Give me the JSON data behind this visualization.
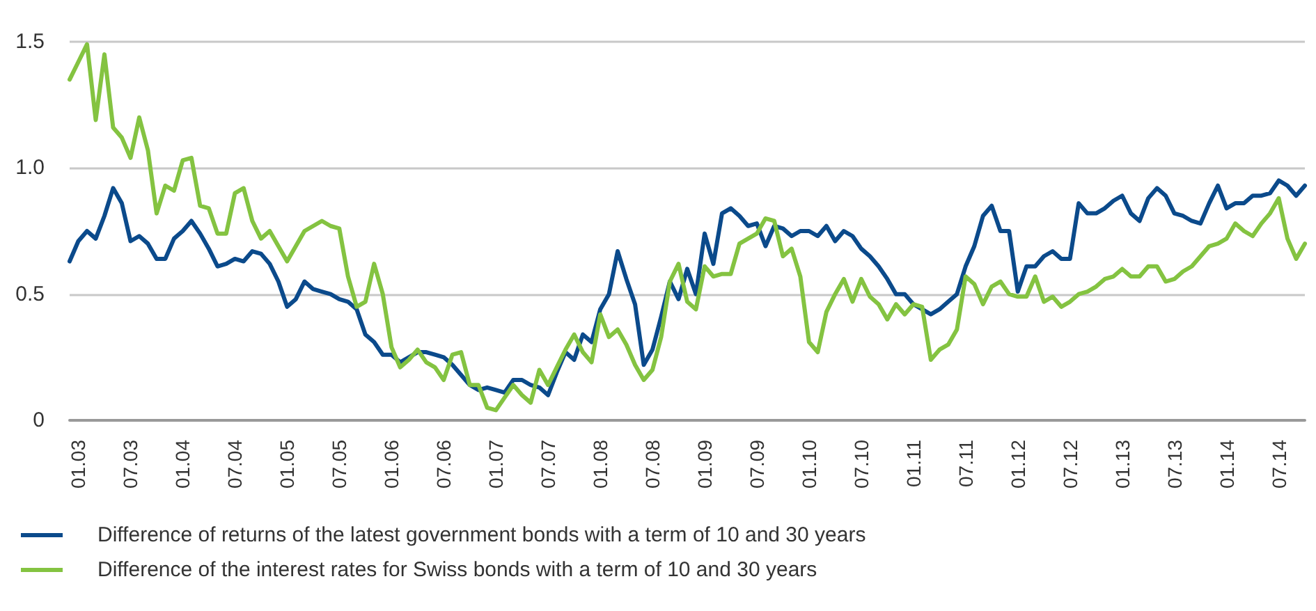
{
  "chart_data": {
    "type": "line",
    "categories": [
      null,
      "01.03",
      null,
      null,
      null,
      null,
      null,
      "07.03",
      null,
      null,
      null,
      null,
      null,
      "01.04",
      null,
      null,
      null,
      null,
      null,
      "07.04",
      null,
      null,
      null,
      null,
      null,
      "01.05",
      null,
      null,
      null,
      null,
      null,
      "07.05",
      null,
      null,
      null,
      null,
      null,
      "01.06",
      null,
      null,
      null,
      null,
      null,
      "07.06",
      null,
      null,
      null,
      null,
      null,
      "01.07",
      null,
      null,
      null,
      null,
      null,
      "07.07",
      null,
      null,
      null,
      null,
      null,
      "01.08",
      null,
      null,
      null,
      null,
      null,
      "07.08",
      null,
      null,
      null,
      null,
      null,
      "01.09",
      null,
      null,
      null,
      null,
      null,
      "07.09",
      null,
      null,
      null,
      null,
      null,
      "01.10",
      null,
      null,
      null,
      null,
      null,
      "07.10",
      null,
      null,
      null,
      null,
      null,
      "01.11",
      null,
      null,
      null,
      null,
      null,
      "07.11",
      null,
      null,
      null,
      null,
      null,
      "01.12",
      null,
      null,
      null,
      null,
      null,
      "07.12",
      null,
      null,
      null,
      null,
      null,
      "01.13",
      null,
      null,
      null,
      null,
      null,
      "07.13",
      null,
      null,
      null,
      null,
      null,
      "01.14",
      null,
      null,
      null,
      null,
      null,
      "07.14",
      null,
      null,
      null
    ],
    "series": [
      {
        "name": "Difference of returns of the latest government bonds with a term of 10 and 30 years",
        "color": "#0b4a8b",
        "values": [
          0.63,
          0.71,
          0.75,
          0.72,
          0.81,
          0.92,
          0.86,
          0.71,
          0.73,
          0.7,
          0.64,
          0.64,
          0.72,
          0.75,
          0.79,
          0.74,
          0.68,
          0.61,
          0.62,
          0.64,
          0.63,
          0.67,
          0.66,
          0.62,
          0.55,
          0.45,
          0.48,
          0.55,
          0.52,
          0.51,
          0.5,
          0.48,
          0.47,
          0.44,
          0.34,
          0.31,
          0.26,
          0.26,
          0.23,
          0.25,
          0.27,
          0.27,
          0.26,
          0.25,
          0.22,
          0.18,
          0.14,
          0.12,
          0.13,
          0.12,
          0.11,
          0.16,
          0.16,
          0.14,
          0.13,
          0.1,
          0.19,
          0.27,
          0.24,
          0.34,
          0.31,
          0.44,
          0.5,
          0.67,
          0.56,
          0.46,
          0.22,
          0.28,
          0.41,
          0.55,
          0.48,
          0.6,
          0.5,
          0.74,
          0.62,
          0.82,
          0.84,
          0.81,
          0.77,
          0.78,
          0.69,
          0.77,
          0.76,
          0.73,
          0.75,
          0.75,
          0.73,
          0.77,
          0.71,
          0.75,
          0.73,
          0.68,
          0.65,
          0.61,
          0.56,
          0.5,
          0.5,
          0.46,
          0.44,
          0.42,
          0.44,
          0.47,
          0.5,
          0.61,
          0.69,
          0.81,
          0.85,
          0.75,
          0.75,
          0.51,
          0.61,
          0.61,
          0.65,
          0.67,
          0.64,
          0.64,
          0.86,
          0.82,
          0.82,
          0.84,
          0.87,
          0.89,
          0.82,
          0.79,
          0.88,
          0.92,
          0.89,
          0.82,
          0.81,
          0.79,
          0.78,
          0.86,
          0.93,
          0.84,
          0.86,
          0.86,
          0.89,
          0.89,
          0.9,
          0.95,
          0.93,
          0.89,
          0.93
        ]
      },
      {
        "name": "Difference of the interest rates for Swiss bonds with a term of 10 and 30 years",
        "color": "#84c341",
        "values": [
          1.35,
          1.42,
          1.49,
          1.19,
          1.45,
          1.16,
          1.12,
          1.04,
          1.2,
          1.07,
          0.82,
          0.93,
          0.91,
          1.03,
          1.04,
          0.85,
          0.84,
          0.74,
          0.74,
          0.9,
          0.92,
          0.79,
          0.72,
          0.75,
          0.69,
          0.63,
          0.69,
          0.75,
          0.77,
          0.79,
          0.77,
          0.76,
          0.57,
          0.45,
          0.47,
          0.62,
          0.5,
          0.29,
          0.21,
          0.24,
          0.28,
          0.23,
          0.21,
          0.16,
          0.26,
          0.27,
          0.14,
          0.14,
          0.05,
          0.04,
          0.09,
          0.14,
          0.1,
          0.07,
          0.2,
          0.14,
          0.21,
          0.28,
          0.34,
          0.27,
          0.23,
          0.42,
          0.33,
          0.36,
          0.3,
          0.22,
          0.16,
          0.2,
          0.33,
          0.55,
          0.62,
          0.47,
          0.44,
          0.61,
          0.57,
          0.58,
          0.58,
          0.7,
          0.72,
          0.74,
          0.8,
          0.79,
          0.65,
          0.68,
          0.57,
          0.31,
          0.27,
          0.43,
          0.5,
          0.56,
          0.47,
          0.56,
          0.49,
          0.46,
          0.4,
          0.46,
          0.42,
          0.46,
          0.45,
          0.24,
          0.28,
          0.3,
          0.36,
          0.57,
          0.54,
          0.46,
          0.53,
          0.55,
          0.5,
          0.49,
          0.49,
          0.57,
          0.47,
          0.49,
          0.45,
          0.47,
          0.5,
          0.51,
          0.53,
          0.56,
          0.57,
          0.6,
          0.57,
          0.57,
          0.61,
          0.61,
          0.55,
          0.56,
          0.59,
          0.61,
          0.65,
          0.69,
          0.7,
          0.72,
          0.78,
          0.75,
          0.73,
          0.78,
          0.82,
          0.88,
          0.72,
          0.64,
          0.7
        ]
      }
    ],
    "ylim": [
      0,
      1.5
    ],
    "yticks": [
      0,
      0.5,
      {
        "value": 1,
        "label": "1.0"
      },
      1.5
    ],
    "grid": "y",
    "legend": "bottom",
    "marker": "none",
    "line_style": "solid"
  }
}
